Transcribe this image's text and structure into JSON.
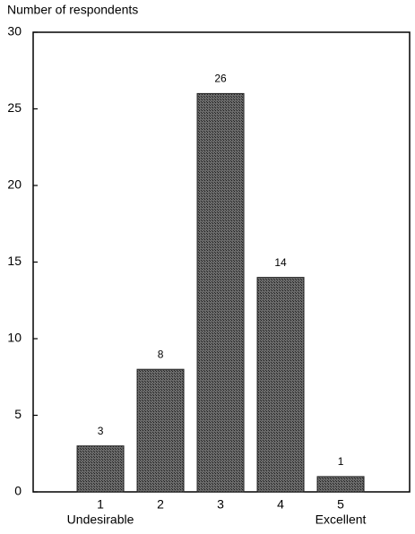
{
  "chart_data": {
    "type": "bar",
    "y_axis_label": "Number of respondents",
    "categories": [
      "1",
      "2",
      "3",
      "4",
      "5"
    ],
    "category_sublabels": [
      "Undesirable",
      null,
      null,
      null,
      "Excellent"
    ],
    "values": [
      3,
      8,
      26,
      14,
      1
    ],
    "color": "#4d4d4d",
    "ylim": [
      0,
      30
    ],
    "yticks": [
      0,
      5,
      10,
      15,
      20,
      25,
      30
    ],
    "grid": false,
    "data_labels": true
  }
}
